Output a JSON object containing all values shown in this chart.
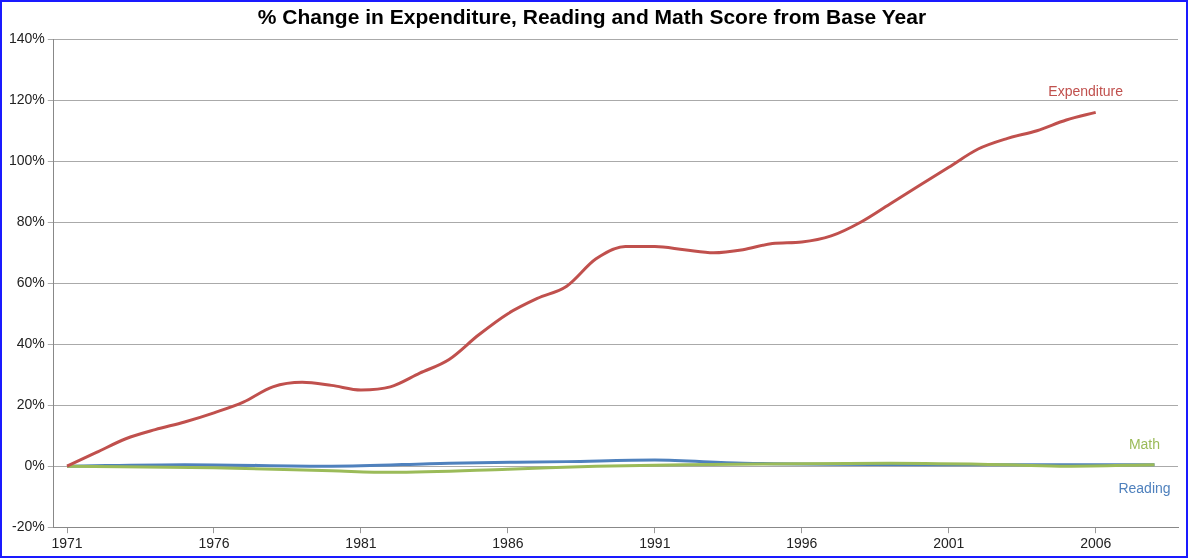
{
  "chart_data": {
    "type": "line",
    "title": "% Change in Expenditure, Reading and Math Score from Base Year",
    "xlim": [
      1970.55,
      2008.8
    ],
    "xticks": [
      1971,
      1976,
      1981,
      1986,
      1991,
      1996,
      2001,
      2006
    ],
    "ylim": [
      -20,
      140
    ],
    "yticks": [
      {
        "value": -20,
        "label": "-20%"
      },
      {
        "value": 0,
        "label": "0%"
      },
      {
        "value": 20,
        "label": "20%"
      },
      {
        "value": 40,
        "label": "40%"
      },
      {
        "value": 60,
        "label": "60%"
      },
      {
        "value": 80,
        "label": "80%"
      },
      {
        "value": 100,
        "label": "100%"
      },
      {
        "value": 120,
        "label": "120%"
      },
      {
        "value": 140,
        "label": "140%"
      }
    ],
    "grid": "y",
    "legend": false,
    "marker": "none",
    "line_style": "solid",
    "series": [
      {
        "name": "Expenditure",
        "color": "#c0504d",
        "x": [
          1971,
          1972,
          1973,
          1974,
          1975,
          1976,
          1977,
          1978,
          1979,
          1980,
          1981,
          1982,
          1983,
          1984,
          1985,
          1986,
          1987,
          1988,
          1989,
          1990,
          1991,
          1992,
          1993,
          1994,
          1995,
          1996,
          1997,
          1998,
          1999,
          2000,
          2001,
          2002,
          2003,
          2004,
          2005,
          2006
        ],
        "values": [
          0,
          4.5,
          9,
          12,
          14.5,
          17.5,
          21,
          26,
          27.5,
          26.5,
          25,
          26,
          30.5,
          35,
          43,
          50,
          55,
          59,
          68,
          72,
          72,
          71,
          70,
          71,
          73,
          73.5,
          75.5,
          80,
          86,
          92,
          98,
          104,
          107.5,
          110,
          113.5,
          116
        ]
      },
      {
        "name": "Math",
        "color": "#9bbb59",
        "x": [
          1971,
          1976,
          1980,
          1982,
          1986,
          1989,
          1992,
          1999,
          2003,
          2005,
          2008
        ],
        "values": [
          0,
          -0.5,
          -1.5,
          -2,
          -1,
          0,
          0.5,
          1,
          0.5,
          0,
          0.5
        ]
      },
      {
        "name": "Reading",
        "color": "#4f81bd",
        "x": [
          1971,
          1975,
          1980,
          1984,
          1988,
          1991,
          1994,
          2004,
          2008
        ],
        "values": [
          0,
          0.5,
          0,
          1,
          1.5,
          2,
          1,
          0.5,
          0.5
        ]
      }
    ]
  }
}
